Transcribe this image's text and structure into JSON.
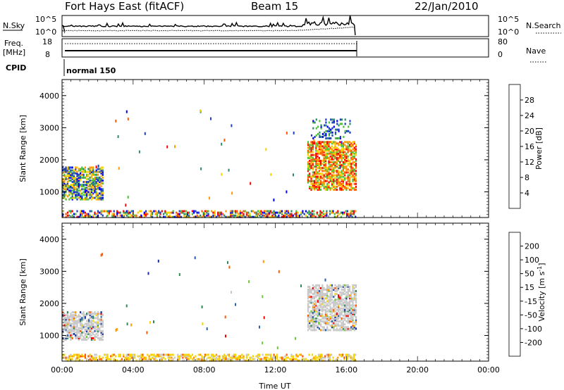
{
  "header": {
    "station": "Fort Hays East (fitACF)",
    "beam": "Beam 15",
    "date": "22/Jan/2010"
  },
  "params": {
    "nsky_label": "N.Sky",
    "nsky_ticks": [
      "10^5",
      "10^0"
    ],
    "nsearch_label": "N.Search",
    "nsearch_ticks": [
      "10^5",
      "10^0"
    ],
    "freq_label": "Freq.",
    "freq_unit": "[MHz]",
    "freq_ticks": [
      "18",
      "8"
    ],
    "nave_label": "Nave",
    "nave_ticks": [
      "80",
      "0"
    ],
    "cpid_label": "CPID",
    "cpid_value": "normal 150"
  },
  "chart_data": [
    {
      "type": "heatmap",
      "name": "power",
      "ylabel": "Slant Range [km]",
      "xlabel": "",
      "xlim": [
        0,
        24
      ],
      "ylim": [
        200,
        4500
      ],
      "yticks": [
        "1000",
        "2000",
        "3000",
        "4000"
      ],
      "colorbar": {
        "label": "Power [dB]",
        "ticks": [
          "4",
          "8",
          "12",
          "16",
          "20",
          "24",
          "28"
        ],
        "colors": [
          "#0000ff",
          "#1e3fbf",
          "#2c8a6a",
          "#4fc03a",
          "#f5d400",
          "#ff9900",
          "#ff5a00",
          "#ff0000"
        ]
      },
      "regions": [
        {
          "t": [
            0.0,
            2.3
          ],
          "r": [
            800,
            1800
          ],
          "level": "mixed-high"
        },
        {
          "t": [
            0.0,
            16.5
          ],
          "r": [
            250,
            450
          ],
          "level": "mixed"
        },
        {
          "t": [
            13.8,
            16.5
          ],
          "r": [
            1100,
            2600
          ],
          "level": "high"
        },
        {
          "t": [
            14.0,
            16.2
          ],
          "r": [
            2700,
            3300
          ],
          "level": "low"
        }
      ]
    },
    {
      "type": "heatmap",
      "name": "velocity",
      "ylabel": "Slant Range [km]",
      "xlabel": "Time UT",
      "xlim": [
        0,
        24
      ],
      "ylim": [
        200,
        4500
      ],
      "xticks": [
        "00:00",
        "04:00",
        "08:00",
        "12:00",
        "16:00",
        "20:00",
        "00:00"
      ],
      "yticks": [
        "1000",
        "2000",
        "3000",
        "4000"
      ],
      "colorbar": {
        "label": "Velocity [m s",
        "label_sup": "-1",
        "label_end": "]",
        "ticks": [
          "200",
          "100",
          "50",
          "15",
          "-15",
          "-50",
          "-100",
          "-200"
        ],
        "colors": [
          "#1a2fa0",
          "#2c5fb0",
          "#2e8a57",
          "#6cc83a",
          "#c8c8c8",
          "#f5d400",
          "#ff9900",
          "#ff5a00",
          "#ff0000"
        ]
      },
      "regions": [
        {
          "t": [
            0.0,
            2.3
          ],
          "r": [
            900,
            1800
          ],
          "level": "ground"
        },
        {
          "t": [
            0.0,
            16.5
          ],
          "r": [
            250,
            450
          ],
          "level": "negative"
        },
        {
          "t": [
            13.8,
            16.5
          ],
          "r": [
            1200,
            2600
          ],
          "level": "ground"
        }
      ]
    }
  ]
}
